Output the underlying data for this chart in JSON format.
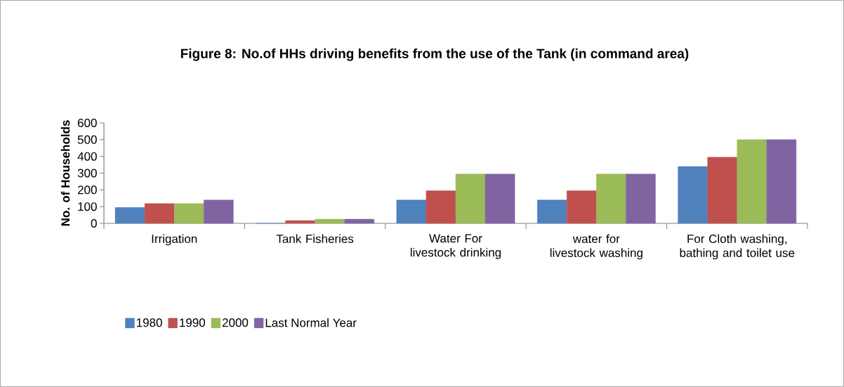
{
  "chart_data": {
    "type": "bar",
    "title": "Figure 8: No.of HHs driving benefits from the use of the Tank  (in command area)",
    "ylabel": "No. of Households",
    "categories": [
      "Irrigation",
      "Tank Fisheries",
      "Water For livestock drinking",
      "water for livestock washing",
      "For Cloth washing, bathing and toilet use"
    ],
    "series": [
      {
        "name": "1980",
        "color": "#4f81bd",
        "values": [
          95,
          0,
          140,
          140,
          340
        ]
      },
      {
        "name": "1990",
        "color": "#c0504d",
        "values": [
          118,
          17,
          195,
          195,
          395
        ]
      },
      {
        "name": "2000",
        "color": "#9bbb59",
        "values": [
          118,
          25,
          295,
          295,
          500
        ]
      },
      {
        "name": "Last Normal Year",
        "color": "#8064a2",
        "values": [
          140,
          25,
          295,
          295,
          500
        ]
      }
    ],
    "ylim": [
      0,
      600
    ],
    "yticks": [
      0,
      100,
      200,
      300,
      400,
      500,
      600
    ],
    "legend": "bottom left",
    "grid": false
  }
}
